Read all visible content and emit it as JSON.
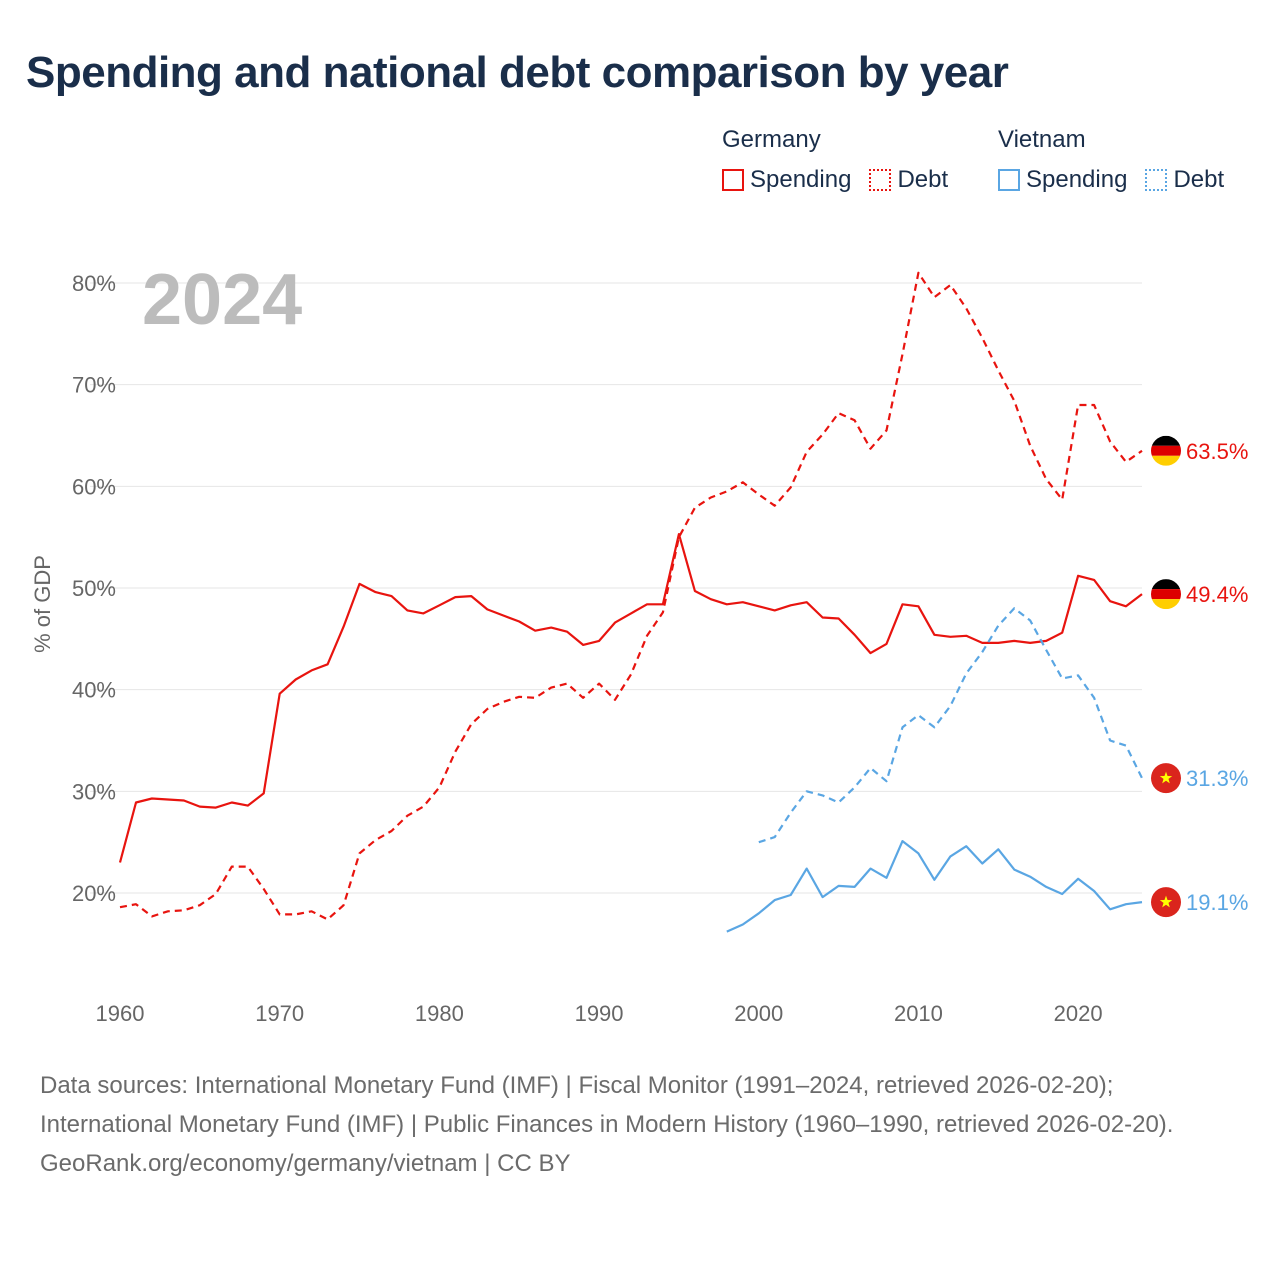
{
  "title": "Spending and national debt comparison by year",
  "legend": {
    "groups": [
      {
        "country": "Germany",
        "color": "#e8140f",
        "items": [
          {
            "label": "Spending",
            "style": "solid"
          },
          {
            "label": "Debt",
            "style": "dotted"
          }
        ]
      },
      {
        "country": "Vietnam",
        "color": "#5aa6e3",
        "items": [
          {
            "label": "Spending",
            "style": "solid"
          },
          {
            "label": "Debt",
            "style": "dotted"
          }
        ]
      }
    ]
  },
  "year_overlay": "2024",
  "chart_data": {
    "type": "line",
    "title": "Spending and national debt comparison by year",
    "xlabel": "",
    "ylabel": "% of GDP",
    "xlim": [
      1960,
      2024
    ],
    "ylim": [
      10,
      82
    ],
    "x_ticks": [
      1960,
      1970,
      1980,
      1990,
      2000,
      2010,
      2020
    ],
    "x_tick_labels": [
      "1960",
      "1970",
      "1980",
      "1990",
      "2000",
      "2010",
      "2020"
    ],
    "y_ticks": [
      20,
      30,
      40,
      50,
      60,
      70,
      80
    ],
    "y_tick_labels": [
      "20%",
      "30%",
      "40%",
      "50%",
      "60%",
      "70%",
      "80%"
    ],
    "grid": true,
    "series": [
      {
        "name": "Germany Debt",
        "country": "Germany",
        "metric": "Debt",
        "color": "#e8140f",
        "dash": "dashed",
        "end_label": "63.5%",
        "flag": "germany",
        "x": [
          1960,
          1961,
          1962,
          1963,
          1964,
          1965,
          1966,
          1967,
          1968,
          1969,
          1970,
          1971,
          1972,
          1973,
          1974,
          1975,
          1976,
          1977,
          1978,
          1979,
          1980,
          1981,
          1982,
          1983,
          1984,
          1985,
          1986,
          1987,
          1988,
          1989,
          1990,
          1991,
          1992,
          1993,
          1994,
          1995,
          1996,
          1997,
          1998,
          1999,
          2000,
          2001,
          2002,
          2003,
          2004,
          2005,
          2006,
          2007,
          2008,
          2009,
          2010,
          2011,
          2012,
          2013,
          2014,
          2015,
          2016,
          2017,
          2018,
          2019,
          2020,
          2021,
          2022,
          2023,
          2024
        ],
        "y": [
          18.6,
          18.9,
          17.7,
          18.2,
          18.3,
          18.8,
          19.9,
          22.6,
          22.6,
          20.4,
          17.9,
          17.9,
          18.2,
          17.4,
          18.8,
          23.9,
          25.2,
          26.1,
          27.6,
          28.5,
          30.4,
          33.9,
          36.6,
          38.1,
          38.8,
          39.3,
          39.2,
          40.2,
          40.6,
          39.2,
          40.6,
          39.0,
          41.5,
          45.3,
          47.6,
          55.0,
          57.9,
          58.9,
          59.5,
          60.4,
          59.2,
          58.1,
          59.9,
          63.4,
          65.1,
          67.2,
          66.5,
          63.7,
          65.5,
          73.0,
          81.0,
          78.6,
          79.8,
          77.5,
          74.6,
          71.4,
          68.4,
          64.0,
          60.7,
          58.7,
          68.0,
          68.0,
          64.4,
          62.4,
          63.5
        ]
      },
      {
        "name": "Germany Spending",
        "country": "Germany",
        "metric": "Spending",
        "color": "#e8140f",
        "dash": "solid",
        "end_label": "49.4%",
        "flag": "germany",
        "x": [
          1960,
          1961,
          1962,
          1963,
          1964,
          1965,
          1966,
          1967,
          1968,
          1969,
          1970,
          1971,
          1972,
          1973,
          1974,
          1975,
          1976,
          1977,
          1978,
          1979,
          1980,
          1981,
          1982,
          1983,
          1984,
          1985,
          1986,
          1987,
          1988,
          1989,
          1990,
          1991,
          1992,
          1993,
          1994,
          1995,
          1996,
          1997,
          1998,
          1999,
          2000,
          2001,
          2002,
          2003,
          2004,
          2005,
          2006,
          2007,
          2008,
          2009,
          2010,
          2011,
          2012,
          2013,
          2014,
          2015,
          2016,
          2017,
          2018,
          2019,
          2020,
          2021,
          2022,
          2023,
          2024
        ],
        "y": [
          23.0,
          28.9,
          29.3,
          29.2,
          29.1,
          28.5,
          28.4,
          28.9,
          28.6,
          29.8,
          39.6,
          41.0,
          41.9,
          42.5,
          46.2,
          50.4,
          49.6,
          49.2,
          47.8,
          47.5,
          48.3,
          49.1,
          49.2,
          47.9,
          47.3,
          46.7,
          45.8,
          46.1,
          45.7,
          44.4,
          44.8,
          46.6,
          47.5,
          48.4,
          48.4,
          55.3,
          49.7,
          48.9,
          48.4,
          48.6,
          48.2,
          47.8,
          48.3,
          48.6,
          47.1,
          47.0,
          45.4,
          43.6,
          44.5,
          48.4,
          48.2,
          45.4,
          45.2,
          45.3,
          44.6,
          44.6,
          44.8,
          44.6,
          44.8,
          45.6,
          51.2,
          50.8,
          48.7,
          48.2,
          49.4
        ]
      },
      {
        "name": "Vietnam Debt",
        "country": "Vietnam",
        "metric": "Debt",
        "color": "#5aa6e3",
        "dash": "dashed",
        "end_label": "31.3%",
        "flag": "vietnam",
        "x": [
          2000,
          2001,
          2002,
          2003,
          2004,
          2005,
          2006,
          2007,
          2008,
          2009,
          2010,
          2011,
          2012,
          2013,
          2014,
          2015,
          2016,
          2017,
          2018,
          2019,
          2020,
          2021,
          2022,
          2023,
          2024
        ],
        "y": [
          25.0,
          25.5,
          27.9,
          30.0,
          29.6,
          28.9,
          30.4,
          32.3,
          31.0,
          36.3,
          37.5,
          36.3,
          38.4,
          41.6,
          43.7,
          46.3,
          48.0,
          46.8,
          43.9,
          41.1,
          41.4,
          39.2,
          35.0,
          34.5,
          31.3
        ]
      },
      {
        "name": "Vietnam Spending",
        "country": "Vietnam",
        "metric": "Spending",
        "color": "#5aa6e3",
        "dash": "solid",
        "end_label": "19.1%",
        "flag": "vietnam",
        "x": [
          1998,
          1999,
          2000,
          2001,
          2002,
          2003,
          2004,
          2005,
          2006,
          2007,
          2008,
          2009,
          2010,
          2011,
          2012,
          2013,
          2014,
          2015,
          2016,
          2017,
          2018,
          2019,
          2020,
          2021,
          2022,
          2023,
          2024
        ],
        "y": [
          16.2,
          16.9,
          18.0,
          19.3,
          19.8,
          22.4,
          19.6,
          20.7,
          20.6,
          22.4,
          21.5,
          25.1,
          23.9,
          21.3,
          23.6,
          24.6,
          22.9,
          24.3,
          22.3,
          21.6,
          20.6,
          19.9,
          21.4,
          20.2,
          18.4,
          18.9,
          19.1
        ]
      }
    ]
  },
  "footer": {
    "sources": "Data sources: International Monetary Fund (IMF) | Fiscal Monitor (1991–2024, retrieved 2026-02-20); International Monetary Fund (IMF) | Public Finances in Modern History (1960–1990, retrieved 2026-02-20).",
    "credit": "GeoRank.org/economy/germany/vietnam | CC BY"
  }
}
